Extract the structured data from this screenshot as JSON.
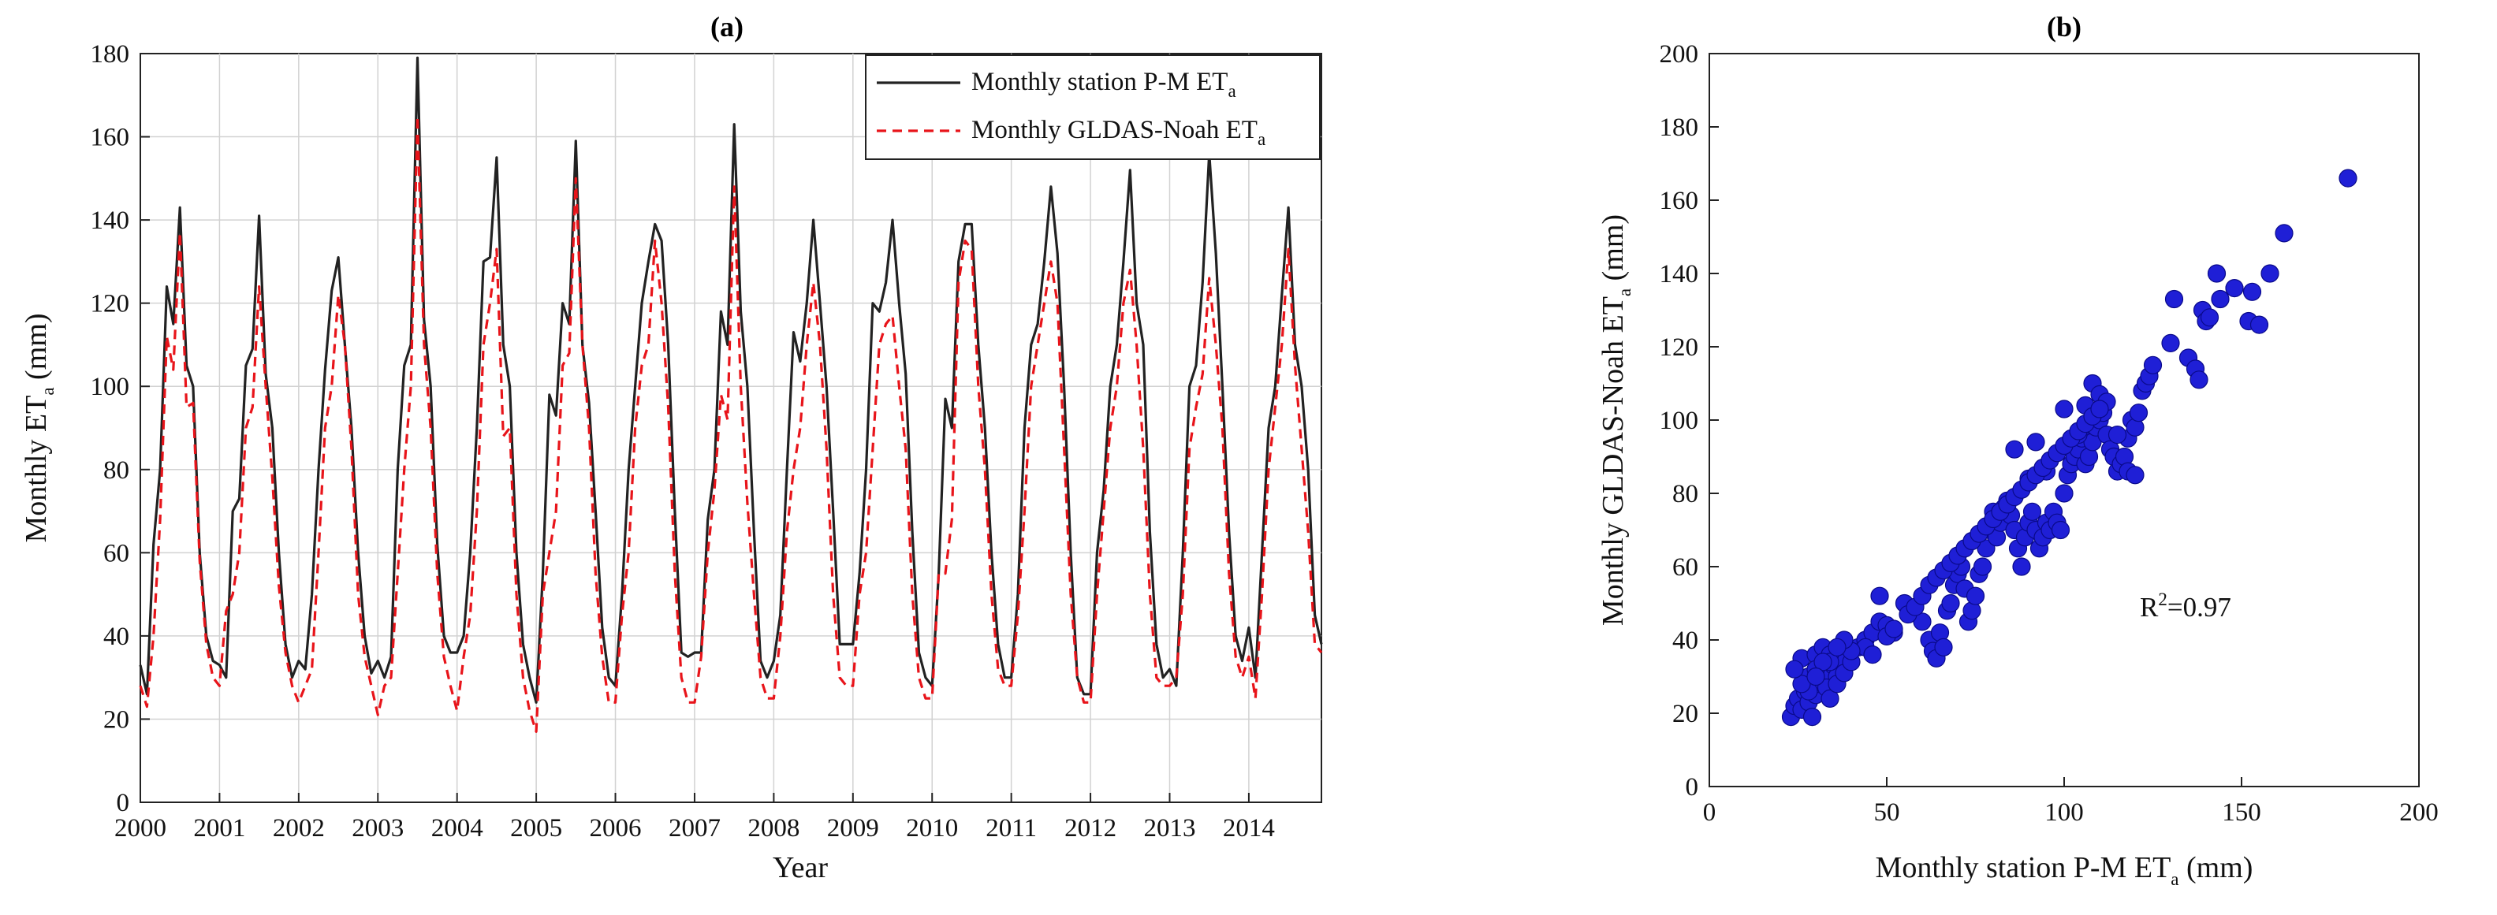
{
  "chart_data": [
    {
      "type": "line",
      "panel_label": "(a)",
      "xlabel": "Year",
      "ylabel_main": "Monthly ET",
      "ylabel_sub": "a",
      "ylabel_units": " (mm)",
      "xlim": [
        2000,
        2014.917
      ],
      "ylim": [
        0,
        180
      ],
      "xticks": [
        "2000",
        "2001",
        "2002",
        "2003",
        "2004",
        "2005",
        "2006",
        "2007",
        "2008",
        "2009",
        "2010",
        "2011",
        "2012",
        "2013",
        "2014"
      ],
      "yticks": [
        "0",
        "20",
        "40",
        "60",
        "80",
        "100",
        "120",
        "140",
        "160",
        "180"
      ],
      "legend_position": "top-right",
      "series": [
        {
          "name_main": "Monthly station P-M ET",
          "name_sub": "a",
          "color": "#222222",
          "style": "solid",
          "values": [
            33,
            26,
            62,
            80,
            124,
            115,
            143,
            105,
            100,
            60,
            40,
            34,
            33,
            30,
            70,
            73,
            105,
            109,
            141,
            103,
            90,
            60,
            38,
            30,
            34,
            32,
            50,
            80,
            104,
            123,
            131,
            110,
            90,
            60,
            40,
            31,
            34,
            30,
            35,
            80,
            105,
            110,
            179,
            116,
            100,
            62,
            40,
            36,
            36,
            40,
            60,
            90,
            130,
            131,
            155,
            110,
            100,
            60,
            38,
            30,
            24,
            55,
            98,
            93,
            120,
            115,
            159,
            110,
            96,
            70,
            42,
            30,
            28,
            50,
            80,
            100,
            120,
            130,
            139,
            135,
            110,
            70,
            36,
            35,
            36,
            36,
            68,
            80,
            118,
            110,
            163,
            118,
            100,
            65,
            34,
            30,
            34,
            45,
            80,
            113,
            106,
            120,
            140,
            120,
            100,
            70,
            38,
            38,
            38,
            55,
            80,
            120,
            118,
            125,
            140,
            120,
            103,
            65,
            36,
            30,
            28,
            55,
            97,
            90,
            130,
            139,
            139,
            110,
            90,
            60,
            38,
            30,
            30,
            50,
            90,
            110,
            115,
            130,
            148,
            132,
            100,
            60,
            30,
            26,
            26,
            60,
            75,
            100,
            110,
            130,
            152,
            120,
            110,
            65,
            38,
            30,
            32,
            28,
            60,
            100,
            105,
            125,
            156,
            132,
            100,
            65,
            40,
            34,
            42,
            30,
            60,
            90,
            100,
            122,
            143,
            110,
            100,
            80,
            45,
            38
          ]
        },
        {
          "name_main": "Monthly GLDAS-Noah ET",
          "name_sub": "a",
          "color": "#e8141a",
          "style": "dashed",
          "values": [
            28,
            23,
            40,
            68,
            112,
            104,
            137,
            95,
            96,
            58,
            38,
            30,
            28,
            46,
            50,
            60,
            90,
            95,
            124,
            100,
            78,
            52,
            36,
            28,
            24,
            28,
            32,
            60,
            90,
            100,
            122,
            110,
            85,
            50,
            35,
            28,
            21,
            28,
            30,
            55,
            80,
            100,
            165,
            110,
            90,
            55,
            35,
            28,
            22,
            35,
            45,
            70,
            110,
            120,
            133,
            88,
            90,
            50,
            30,
            22,
            17,
            50,
            60,
            70,
            105,
            108,
            150,
            110,
            90,
            55,
            35,
            24,
            24,
            45,
            60,
            90,
            105,
            110,
            135,
            120,
            95,
            55,
            30,
            24,
            24,
            35,
            60,
            75,
            98,
            92,
            148,
            100,
            72,
            50,
            30,
            25,
            25,
            40,
            65,
            80,
            90,
            110,
            125,
            110,
            85,
            50,
            30,
            28,
            28,
            50,
            60,
            85,
            110,
            115,
            117,
            100,
            85,
            50,
            30,
            25,
            25,
            55,
            55,
            68,
            125,
            135,
            133,
            100,
            80,
            50,
            32,
            28,
            28,
            45,
            70,
            100,
            110,
            120,
            130,
            120,
            85,
            50,
            30,
            24,
            24,
            50,
            70,
            90,
            100,
            120,
            128,
            110,
            85,
            50,
            30,
            28,
            28,
            30,
            50,
            85,
            95,
            103,
            126,
            110,
            90,
            55,
            35,
            30,
            35,
            25,
            50,
            80,
            95,
            110,
            133,
            105,
            85,
            65,
            38,
            36
          ]
        }
      ]
    },
    {
      "type": "scatter",
      "panel_label": "(b)",
      "xlabel_main": "Monthly station P-M ET",
      "xlabel_sub": "a",
      "xlabel_units": " (mm)",
      "ylabel_main": "Monthly GLDAS-Noah ET",
      "ylabel_sub": "a",
      "ylabel_units": " (mm)",
      "xlim": [
        0,
        200
      ],
      "ylim": [
        0,
        200
      ],
      "xticks": [
        "0",
        "50",
        "100",
        "150",
        "200"
      ],
      "yticks": [
        "0",
        "20",
        "40",
        "60",
        "80",
        "100",
        "120",
        "140",
        "160",
        "180",
        "200"
      ],
      "annotation_main": "R",
      "annotation_sup": "2",
      "annotation_rest": "=0.97",
      "marker_color": "#1f1fd6",
      "points": [
        [
          23,
          19
        ],
        [
          24,
          22
        ],
        [
          25,
          24
        ],
        [
          26,
          21
        ],
        [
          27,
          26
        ],
        [
          28,
          23
        ],
        [
          29,
          19
        ],
        [
          30,
          25
        ],
        [
          31,
          28
        ],
        [
          32,
          30
        ],
        [
          33,
          27
        ],
        [
          34,
          24
        ],
        [
          35,
          33
        ],
        [
          36,
          30
        ],
        [
          37,
          35
        ],
        [
          38,
          34
        ],
        [
          26,
          35
        ],
        [
          28,
          30
        ],
        [
          30,
          36
        ],
        [
          32,
          38
        ],
        [
          34,
          36
        ],
        [
          36,
          28
        ],
        [
          38,
          31
        ],
        [
          40,
          34
        ],
        [
          42,
          38
        ],
        [
          44,
          40
        ],
        [
          46,
          42
        ],
        [
          48,
          45
        ],
        [
          50,
          44
        ],
        [
          52,
          42
        ],
        [
          48,
          52
        ],
        [
          55,
          50
        ],
        [
          60,
          45
        ],
        [
          62,
          40
        ],
        [
          63,
          37
        ],
        [
          64,
          35
        ],
        [
          65,
          42
        ],
        [
          66,
          38
        ],
        [
          67,
          48
        ],
        [
          68,
          50
        ],
        [
          69,
          55
        ],
        [
          70,
          58
        ],
        [
          71,
          60
        ],
        [
          72,
          54
        ],
        [
          73,
          45
        ],
        [
          74,
          48
        ],
        [
          75,
          52
        ],
        [
          76,
          58
        ],
        [
          77,
          60
        ],
        [
          78,
          65
        ],
        [
          79,
          70
        ],
        [
          80,
          75
        ],
        [
          81,
          68
        ],
        [
          82,
          72
        ],
        [
          83,
          76
        ],
        [
          84,
          78
        ],
        [
          85,
          74
        ],
        [
          86,
          70
        ],
        [
          87,
          65
        ],
        [
          88,
          60
        ],
        [
          89,
          68
        ],
        [
          90,
          72
        ],
        [
          91,
          75
        ],
        [
          92,
          70
        ],
        [
          93,
          65
        ],
        [
          94,
          68
        ],
        [
          95,
          72
        ],
        [
          96,
          70
        ],
        [
          97,
          75
        ],
        [
          98,
          72
        ],
        [
          99,
          70
        ],
        [
          100,
          80
        ],
        [
          101,
          85
        ],
        [
          102,
          88
        ],
        [
          103,
          90
        ],
        [
          104,
          92
        ],
        [
          105,
          95
        ],
        [
          106,
          88
        ],
        [
          107,
          90
        ],
        [
          108,
          94
        ],
        [
          109,
          98
        ],
        [
          110,
          100
        ],
        [
          111,
          102
        ],
        [
          112,
          96
        ],
        [
          113,
          92
        ],
        [
          114,
          90
        ],
        [
          115,
          86
        ],
        [
          116,
          88
        ],
        [
          117,
          90
        ],
        [
          118,
          95
        ],
        [
          119,
          100
        ],
        [
          120,
          98
        ],
        [
          121,
          102
        ],
        [
          122,
          108
        ],
        [
          123,
          110
        ],
        [
          124,
          112
        ],
        [
          125,
          115
        ],
        [
          86,
          92
        ],
        [
          90,
          84
        ],
        [
          92,
          94
        ],
        [
          95,
          86
        ],
        [
          100,
          103
        ],
        [
          104,
          96
        ],
        [
          106,
          104
        ],
        [
          108,
          110
        ],
        [
          110,
          107
        ],
        [
          112,
          105
        ],
        [
          115,
          96
        ],
        [
          118,
          86
        ],
        [
          120,
          85
        ],
        [
          130,
          121
        ],
        [
          131,
          133
        ],
        [
          135,
          117
        ],
        [
          137,
          114
        ],
        [
          138,
          111
        ],
        [
          139,
          130
        ],
        [
          140,
          127
        ],
        [
          141,
          128
        ],
        [
          143,
          140
        ],
        [
          144,
          133
        ],
        [
          148,
          136
        ],
        [
          152,
          127
        ],
        [
          153,
          135
        ],
        [
          155,
          126
        ],
        [
          158,
          140
        ],
        [
          162,
          151
        ],
        [
          180,
          166
        ],
        [
          44,
          38
        ],
        [
          46,
          36
        ],
        [
          50,
          41
        ],
        [
          52,
          43
        ],
        [
          56,
          47
        ],
        [
          58,
          49
        ],
        [
          60,
          52
        ],
        [
          62,
          55
        ],
        [
          64,
          57
        ],
        [
          66,
          59
        ],
        [
          68,
          61
        ],
        [
          70,
          63
        ],
        [
          72,
          65
        ],
        [
          74,
          67
        ],
        [
          76,
          69
        ],
        [
          78,
          71
        ],
        [
          80,
          73
        ],
        [
          82,
          75
        ],
        [
          84,
          77
        ],
        [
          86,
          79
        ],
        [
          88,
          81
        ],
        [
          90,
          83
        ],
        [
          92,
          85
        ],
        [
          94,
          87
        ],
        [
          96,
          89
        ],
        [
          98,
          91
        ],
        [
          100,
          93
        ],
        [
          102,
          95
        ],
        [
          104,
          97
        ],
        [
          106,
          99
        ],
        [
          108,
          101
        ],
        [
          110,
          103
        ],
        [
          30,
          32
        ],
        [
          34,
          34
        ],
        [
          40,
          37
        ],
        [
          38,
          40
        ],
        [
          36,
          38
        ],
        [
          32,
          34
        ],
        [
          28,
          26
        ],
        [
          26,
          28
        ],
        [
          24,
          32
        ],
        [
          30,
          30
        ]
      ]
    }
  ]
}
